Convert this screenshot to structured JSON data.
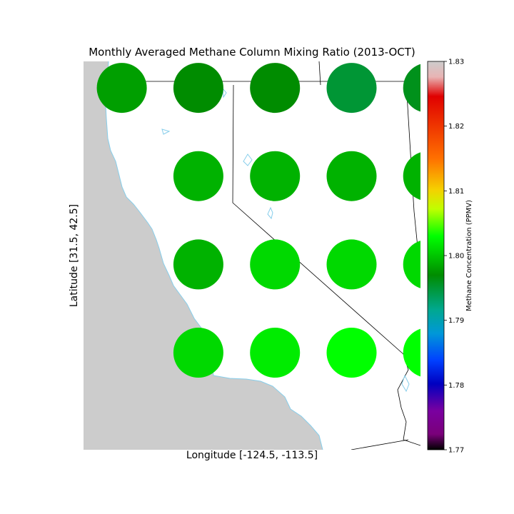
{
  "title": "Monthly Averaged Methane Column Mixing Ratio (2013-OCT)",
  "xlabel": "Longitude [-124.5, -113.5]",
  "ylabel": "Latitude [31.5, 42.5]",
  "map": {
    "lon_range": [
      -124.5,
      -113.5
    ],
    "lat_range": [
      31.5,
      42.5
    ],
    "land_color": "#ffffff",
    "outside_color": "#cccccc",
    "coastline_color": "#87ceeb",
    "border_color": "#000000"
  },
  "chart_data": {
    "type": "heatmap",
    "grid_lons": [
      -123.25,
      -120.75,
      -118.25,
      -115.75,
      -113.25
    ],
    "grid_lats": [
      41.75,
      39.25,
      36.75,
      34.25
    ],
    "points": [
      {
        "lon": -123.25,
        "lat": 41.75,
        "value": 1.798
      },
      {
        "lon": -120.75,
        "lat": 41.75,
        "value": 1.797
      },
      {
        "lon": -118.25,
        "lat": 41.75,
        "value": 1.797
      },
      {
        "lon": -115.75,
        "lat": 41.75,
        "value": 1.795
      },
      {
        "lon": -113.25,
        "lat": 41.75,
        "value": 1.796
      },
      {
        "lon": -120.75,
        "lat": 39.25,
        "value": 1.799
      },
      {
        "lon": -118.25,
        "lat": 39.25,
        "value": 1.799
      },
      {
        "lon": -115.75,
        "lat": 39.25,
        "value": 1.799
      },
      {
        "lon": -113.25,
        "lat": 39.25,
        "value": 1.799
      },
      {
        "lon": -120.75,
        "lat": 36.75,
        "value": 1.799
      },
      {
        "lon": -118.25,
        "lat": 36.75,
        "value": 1.801
      },
      {
        "lon": -115.75,
        "lat": 36.75,
        "value": 1.801
      },
      {
        "lon": -113.25,
        "lat": 36.75,
        "value": 1.801
      },
      {
        "lon": -120.75,
        "lat": 34.25,
        "value": 1.801
      },
      {
        "lon": -118.25,
        "lat": 34.25,
        "value": 1.802
      },
      {
        "lon": -115.75,
        "lat": 34.25,
        "value": 1.803
      },
      {
        "lon": -113.25,
        "lat": 34.25,
        "value": 1.803
      }
    ],
    "colorbar": {
      "label": "Methane Concentration (PPMV)",
      "range": [
        1.77,
        1.83
      ],
      "ticks": [
        "1.77",
        "1.78",
        "1.79",
        "1.80",
        "1.81",
        "1.82",
        "1.83"
      ]
    }
  }
}
